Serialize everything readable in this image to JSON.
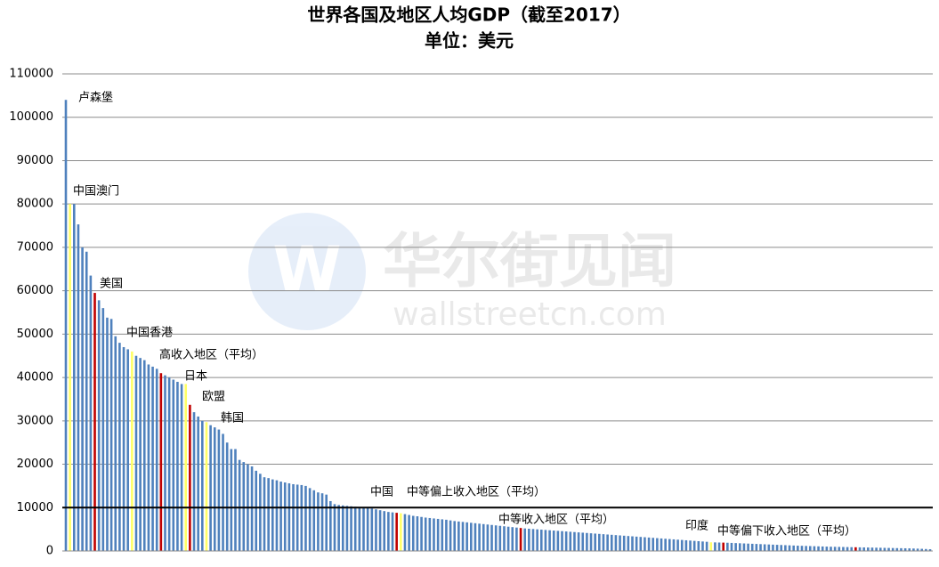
{
  "chart_data": {
    "type": "bar",
    "title": "世界各国及地区人均GDP（截至2017）",
    "subtitle": "单位：美元",
    "watermark": "华尔街见闻",
    "watermark_url": "wallstreetcn.com",
    "ylim": [
      0,
      110000
    ],
    "yticks": [
      0,
      10000,
      20000,
      30000,
      40000,
      50000,
      60000,
      70000,
      80000,
      90000,
      100000,
      110000
    ],
    "grid": true,
    "reference_line": 10000,
    "categories": [
      "卢森堡",
      "中国澳门",
      null,
      null,
      null,
      null,
      null,
      "美国",
      null,
      null,
      null,
      null,
      null,
      null,
      null,
      null,
      "中国香港",
      null,
      null,
      null,
      null,
      null,
      null,
      "高收入地区（平均）",
      null,
      null,
      null,
      null,
      null,
      "日本",
      "欧盟",
      null,
      null,
      null,
      "韩国",
      null,
      null,
      null,
      null,
      null,
      null,
      null,
      null,
      null,
      null,
      null,
      null,
      null,
      null,
      null,
      null,
      null,
      null,
      null,
      null,
      null,
      null,
      null,
      null,
      null,
      null,
      null,
      null,
      null,
      null,
      null,
      null,
      null,
      null,
      null,
      null,
      null,
      null,
      null,
      null,
      null,
      null,
      null,
      null,
      null,
      "中国",
      "中等偏上收入地区（平均）",
      null,
      null,
      null,
      null,
      null,
      null,
      null,
      null,
      null,
      null,
      null,
      null,
      null,
      null,
      null,
      null,
      null,
      null,
      null,
      null,
      null,
      null,
      null,
      null,
      null,
      null,
      null,
      null,
      "中等收入地区（平均）",
      null,
      null,
      null,
      null,
      null,
      null,
      null,
      null,
      null,
      null,
      null,
      null,
      null,
      null,
      null,
      null,
      null,
      null,
      null,
      null,
      null,
      null,
      null,
      null,
      null,
      null,
      null,
      null,
      null,
      null,
      null,
      null,
      null,
      null,
      null,
      null,
      null,
      null,
      null,
      null,
      null,
      null,
      null,
      null,
      null,
      "印度",
      null,
      null,
      "中等偏下收入地区（平均）",
      null,
      null,
      null,
      null,
      null,
      null,
      null,
      null,
      null,
      null,
      null,
      null,
      null,
      null,
      null,
      null,
      null,
      null,
      null,
      null,
      null,
      null,
      null,
      null,
      null,
      null,
      null,
      null,
      null,
      null,
      null,
      null,
      null,
      null,
      null,
      null,
      null,
      null,
      null,
      null,
      null,
      null,
      null,
      null,
      null,
      null,
      null,
      null,
      null,
      null
    ],
    "values": [
      104000,
      80000,
      80000,
      75300,
      70000,
      69000,
      63500,
      59500,
      57800,
      56000,
      53800,
      53500,
      49500,
      48000,
      47000,
      46500,
      46000,
      45000,
      44500,
      44000,
      43000,
      42500,
      42000,
      41000,
      40500,
      40000,
      39500,
      39000,
      38500,
      38500,
      33700,
      32000,
      31000,
      30000,
      29700,
      29000,
      28500,
      28000,
      27000,
      25000,
      23500,
      23500,
      21000,
      20500,
      20000,
      19500,
      18500,
      17800,
      17000,
      16800,
      16500,
      16300,
      16000,
      15800,
      15600,
      15400,
      15300,
      15200,
      15000,
      14500,
      14000,
      13500,
      13300,
      13000,
      11500,
      10800,
      10600,
      10500,
      10400,
      10300,
      10200,
      10100,
      10000,
      9900,
      9800,
      9600,
      9400,
      9200,
      9000,
      8900,
      8800,
      8700,
      8500,
      8300,
      8100,
      8000,
      7850,
      7700,
      7600,
      7500,
      7400,
      7300,
      7200,
      7050,
      6900,
      6800,
      6700,
      6600,
      6500,
      6400,
      6300,
      6200,
      6100,
      6000,
      5900,
      5800,
      5700,
      5600,
      5500,
      5400,
      5300,
      5200,
      5130,
      5060,
      4990,
      4920,
      4850,
      4780,
      4710,
      4640,
      4570,
      4500,
      4430,
      4360,
      4290,
      4220,
      4150,
      4080,
      4010,
      3940,
      3870,
      3800,
      3730,
      3660,
      3590,
      3520,
      3450,
      3380,
      3310,
      3240,
      3170,
      3100,
      3030,
      2960,
      2890,
      2820,
      2750,
      2680,
      2610,
      2540,
      2470,
      2400,
      2330,
      2260,
      2190,
      2120,
      2000,
      1980,
      1950,
      1930,
      1900,
      1860,
      1820,
      1780,
      1740,
      1700,
      1660,
      1620,
      1580,
      1540,
      1500,
      1460,
      1420,
      1380,
      1340,
      1300,
      1260,
      1220,
      1190,
      1160,
      1130,
      1100,
      1070,
      1040,
      1010,
      980,
      960,
      940,
      920,
      900,
      880,
      860,
      840,
      820,
      800,
      780,
      760,
      740,
      720,
      700,
      680,
      660,
      640,
      620,
      600,
      570,
      540,
      500,
      450,
      400
    ],
    "colors": [
      "#4f81bd",
      "#ffff66",
      "#4f81bd",
      "#4f81bd",
      "#4f81bd",
      "#4f81bd",
      "#4f81bd",
      "#c00000",
      "#4f81bd",
      "#4f81bd",
      "#4f81bd",
      "#4f81bd",
      "#4f81bd",
      "#4f81bd",
      "#4f81bd",
      "#4f81bd",
      "#ffff66",
      "#4f81bd",
      "#4f81bd",
      "#4f81bd",
      "#4f81bd",
      "#4f81bd",
      "#4f81bd",
      "#c00000",
      "#4f81bd",
      "#4f81bd",
      "#4f81bd",
      "#4f81bd",
      "#4f81bd",
      "#ffff66",
      "#c00000",
      "#4f81bd",
      "#4f81bd",
      "#4f81bd",
      "#ffff66",
      "#4f81bd",
      "#4f81bd",
      "#4f81bd",
      "#4f81bd",
      "#4f81bd",
      "#4f81bd",
      "#4f81bd",
      "#4f81bd",
      "#4f81bd",
      "#4f81bd",
      "#4f81bd",
      "#4f81bd",
      "#4f81bd",
      "#4f81bd",
      "#4f81bd",
      "#4f81bd",
      "#4f81bd",
      "#4f81bd",
      "#4f81bd",
      "#4f81bd",
      "#4f81bd",
      "#4f81bd",
      "#4f81bd",
      "#4f81bd",
      "#4f81bd",
      "#4f81bd",
      "#4f81bd",
      "#4f81bd",
      "#4f81bd",
      "#4f81bd",
      "#4f81bd",
      "#4f81bd",
      "#4f81bd",
      "#4f81bd",
      "#4f81bd",
      "#4f81bd",
      "#4f81bd",
      "#4f81bd",
      "#4f81bd",
      "#4f81bd",
      "#4f81bd",
      "#4f81bd",
      "#4f81bd",
      "#4f81bd",
      "#4f81bd",
      "#c00000",
      "#ffff66",
      "#4f81bd",
      "#4f81bd",
      "#4f81bd",
      "#4f81bd",
      "#4f81bd",
      "#4f81bd",
      "#4f81bd",
      "#4f81bd",
      "#4f81bd",
      "#4f81bd",
      "#4f81bd",
      "#4f81bd",
      "#4f81bd",
      "#4f81bd",
      "#4f81bd",
      "#4f81bd",
      "#4f81bd",
      "#4f81bd",
      "#4f81bd",
      "#4f81bd",
      "#4f81bd",
      "#4f81bd",
      "#4f81bd",
      "#4f81bd",
      "#4f81bd",
      "#4f81bd",
      "#4f81bd",
      "#4f81bd",
      "#c00000",
      "#4f81bd",
      "#4f81bd",
      "#4f81bd",
      "#4f81bd",
      "#4f81bd",
      "#4f81bd",
      "#4f81bd",
      "#4f81bd",
      "#4f81bd",
      "#4f81bd",
      "#4f81bd",
      "#4f81bd",
      "#4f81bd",
      "#4f81bd",
      "#4f81bd",
      "#4f81bd",
      "#4f81bd",
      "#4f81bd",
      "#4f81bd",
      "#4f81bd",
      "#4f81bd",
      "#4f81bd",
      "#4f81bd",
      "#4f81bd",
      "#4f81bd",
      "#4f81bd",
      "#4f81bd",
      "#4f81bd",
      "#4f81bd",
      "#4f81bd",
      "#4f81bd",
      "#4f81bd",
      "#4f81bd",
      "#4f81bd",
      "#4f81bd",
      "#4f81bd",
      "#4f81bd",
      "#4f81bd",
      "#4f81bd",
      "#4f81bd",
      "#4f81bd",
      "#4f81bd",
      "#4f81bd",
      "#4f81bd",
      "#4f81bd",
      "#ffff66",
      "#4f81bd",
      "#4f81bd",
      "#c00000",
      "#4f81bd",
      "#4f81bd",
      "#4f81bd",
      "#4f81bd",
      "#4f81bd",
      "#4f81bd",
      "#4f81bd",
      "#4f81bd",
      "#4f81bd",
      "#4f81bd",
      "#4f81bd",
      "#4f81bd",
      "#4f81bd",
      "#4f81bd",
      "#4f81bd",
      "#4f81bd",
      "#4f81bd",
      "#4f81bd",
      "#4f81bd",
      "#4f81bd",
      "#4f81bd",
      "#4f81bd",
      "#4f81bd",
      "#4f81bd",
      "#4f81bd",
      "#4f81bd",
      "#4f81bd",
      "#4f81bd",
      "#4f81bd",
      "#4f81bd",
      "#4f81bd",
      "#c00000",
      "#4f81bd",
      "#4f81bd",
      "#4f81bd",
      "#4f81bd",
      "#4f81bd",
      "#4f81bd",
      "#4f81bd",
      "#4f81bd",
      "#4f81bd",
      "#4f81bd",
      "#4f81bd",
      "#4f81bd",
      "#4f81bd",
      "#4f81bd",
      "#4f81bd",
      "#4f81bd",
      "#4f81bd",
      "#4f81bd"
    ]
  }
}
